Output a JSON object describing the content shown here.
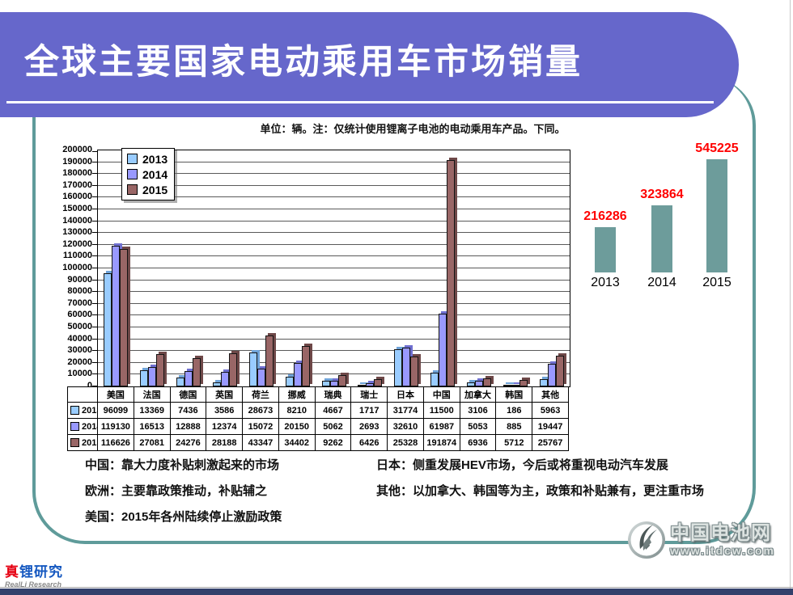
{
  "slide": {
    "title": "全球主要国家电动乘用车市场销量",
    "note": "单位：辆。注：仅统计使用锂离子电池的电动乘用车产品。下同。"
  },
  "chart_data": [
    {
      "type": "bar",
      "categories": [
        "美国",
        "法国",
        "德国",
        "英国",
        "荷兰",
        "挪威",
        "瑞典",
        "瑞士",
        "日本",
        "中国",
        "加拿大",
        "韩国",
        "其他"
      ],
      "series": [
        {
          "name": "2013",
          "values": [
            96099,
            13369,
            7436,
            3586,
            28673,
            8210,
            4667,
            1717,
            31774,
            11500,
            3106,
            186,
            5963
          ]
        },
        {
          "name": "2014",
          "values": [
            119130,
            16513,
            12888,
            12374,
            15072,
            20150,
            5062,
            2693,
            32610,
            61987,
            5053,
            885,
            19447
          ]
        },
        {
          "name": "2015",
          "values": [
            116626,
            27081,
            24276,
            28188,
            43347,
            34402,
            9262,
            6426,
            25328,
            191874,
            6936,
            5712,
            25767
          ]
        }
      ],
      "colors": {
        "2013": "#99CCFF",
        "2014": "#9999FF",
        "2015": "#996666"
      },
      "ylim": [
        0,
        200000
      ],
      "ytick_step": 10000,
      "grid": true,
      "legend_position": "top-left",
      "data_table_shown": true,
      "unit": "辆"
    },
    {
      "type": "bar",
      "categories": [
        "2013",
        "2014",
        "2015"
      ],
      "values": [
        216286,
        323864,
        545225
      ],
      "bar_color": "#6D9C9B",
      "value_label_color": "#FF0000",
      "ylim": [
        0,
        600000
      ],
      "grid": false
    }
  ],
  "annotations": {
    "left": [
      "中国：靠大力度补贴刺激起来的市场",
      "欧洲：主要靠政策推动，补贴辅之",
      "美国：2015年各州陆续停止激励政策"
    ],
    "right": [
      "日本：侧重发展HEV市场，今后或将重视电动汽车发展",
      "其他：以加拿大、韩国等为主，政策和补贴兼有，更注重市场"
    ]
  },
  "footer": {
    "left_logo": {
      "chars": [
        {
          "text": "真",
          "color": "#E60012"
        },
        {
          "text": "锂",
          "color": "#1558C0"
        },
        {
          "text": "研",
          "color": "#1558C0"
        },
        {
          "text": "究",
          "color": "#1558C0"
        }
      ],
      "subtitle": "RealLi Research"
    },
    "right_logo": {
      "title": "中国电池网",
      "url": "www.itdcw.com"
    }
  },
  "colors": {
    "banner": "#6667CB",
    "frame": "#5F9B9A",
    "mini_bar": "#6D9C9B",
    "value_label": "#FF0000",
    "bottom_bar": "#33406B"
  }
}
